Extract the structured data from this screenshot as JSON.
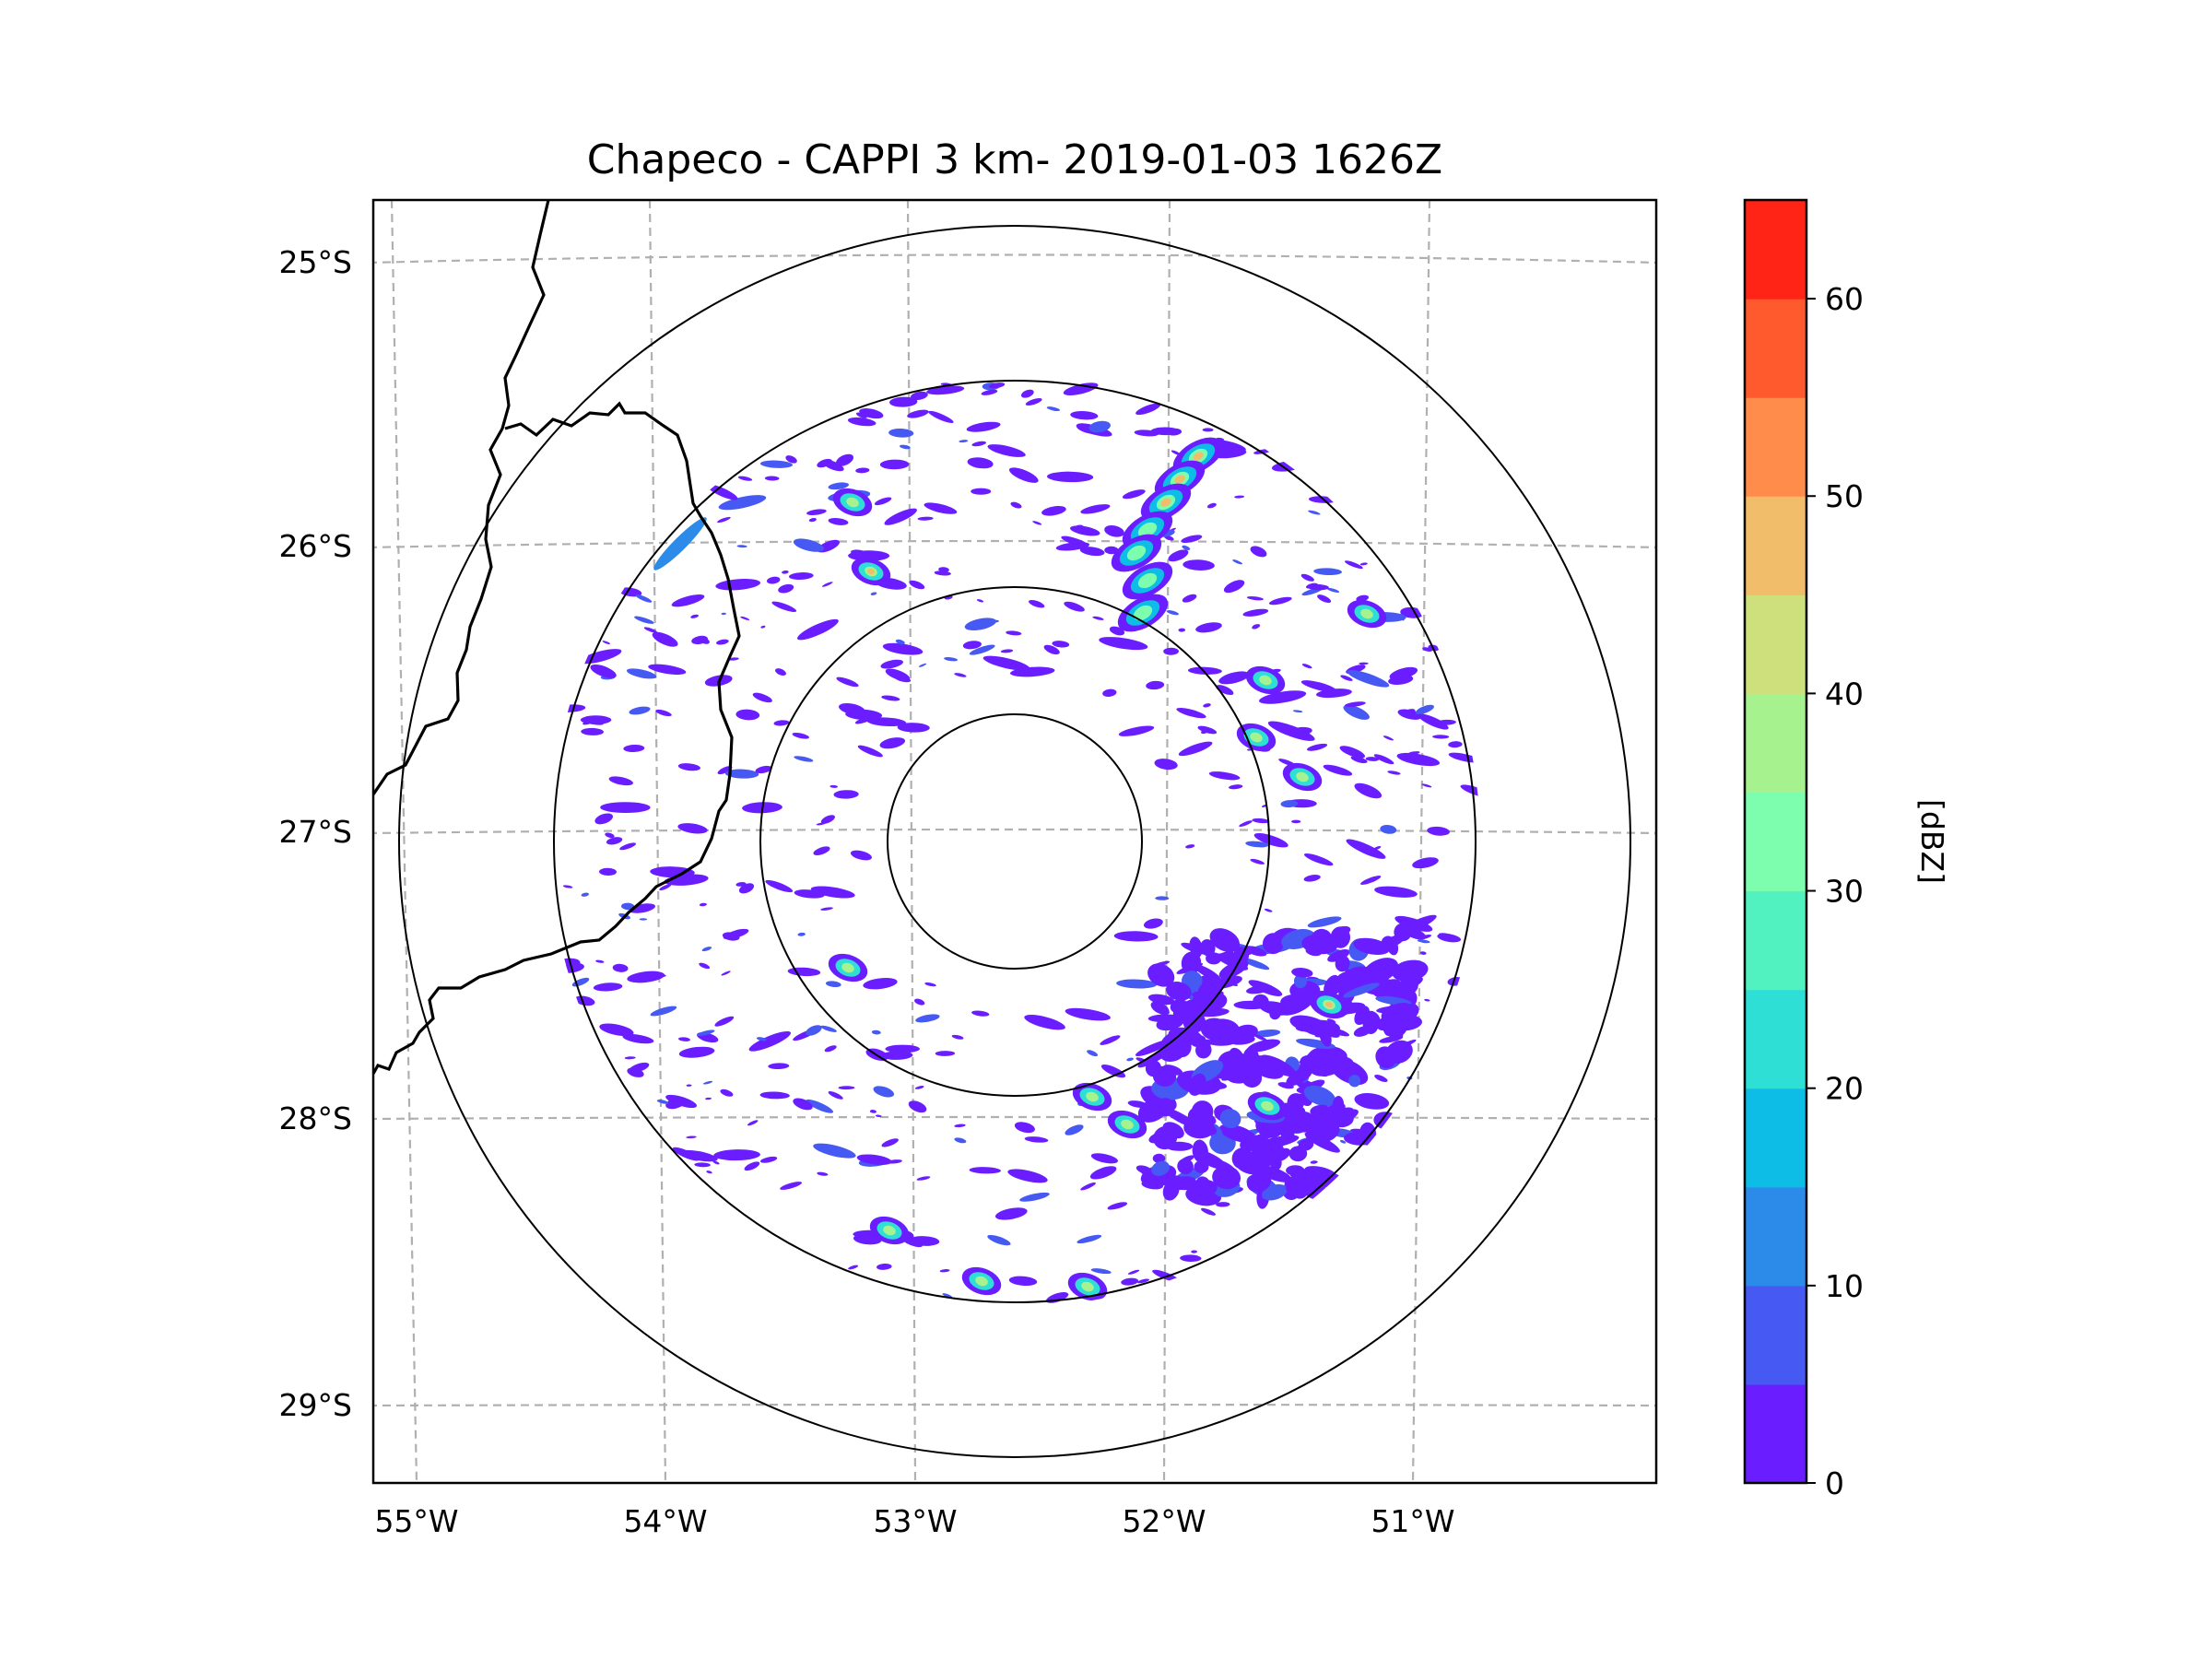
{
  "title": "Chapeco - CAPPI 3 km- 2019-01-03 1626Z",
  "lat_labels": [
    "25°S",
    "26°S",
    "27°S",
    "28°S",
    "29°S"
  ],
  "lon_labels": [
    "55°W",
    "54°W",
    "53°W",
    "52°W",
    "51°W"
  ],
  "colorbar": {
    "label": "[dBZ]",
    "ticks": [
      "0",
      "10",
      "20",
      "30",
      "40",
      "50",
      "60"
    ],
    "levels": [
      0,
      5,
      10,
      15,
      20,
      25,
      30,
      35,
      40,
      45,
      50,
      55,
      60,
      65
    ],
    "colors": [
      "#6a1eff",
      "#4659f2",
      "#2c8be8",
      "#0ebde6",
      "#2edfd6",
      "#51f2c0",
      "#7cfeae",
      "#a6f28e",
      "#cde07c",
      "#f2bd6b",
      "#ff8c4a",
      "#ff5a2e",
      "#ff2415"
    ]
  },
  "colors": {
    "grid": "#b0b0b0",
    "border": "#000000",
    "range_rings": "#000000"
  },
  "map": {
    "radar_site": "Chapeco",
    "range_rings_count": 4,
    "echo_levels_dbz": [
      0,
      5,
      10,
      15,
      20,
      25,
      30,
      35,
      40,
      45,
      50,
      55
    ]
  }
}
